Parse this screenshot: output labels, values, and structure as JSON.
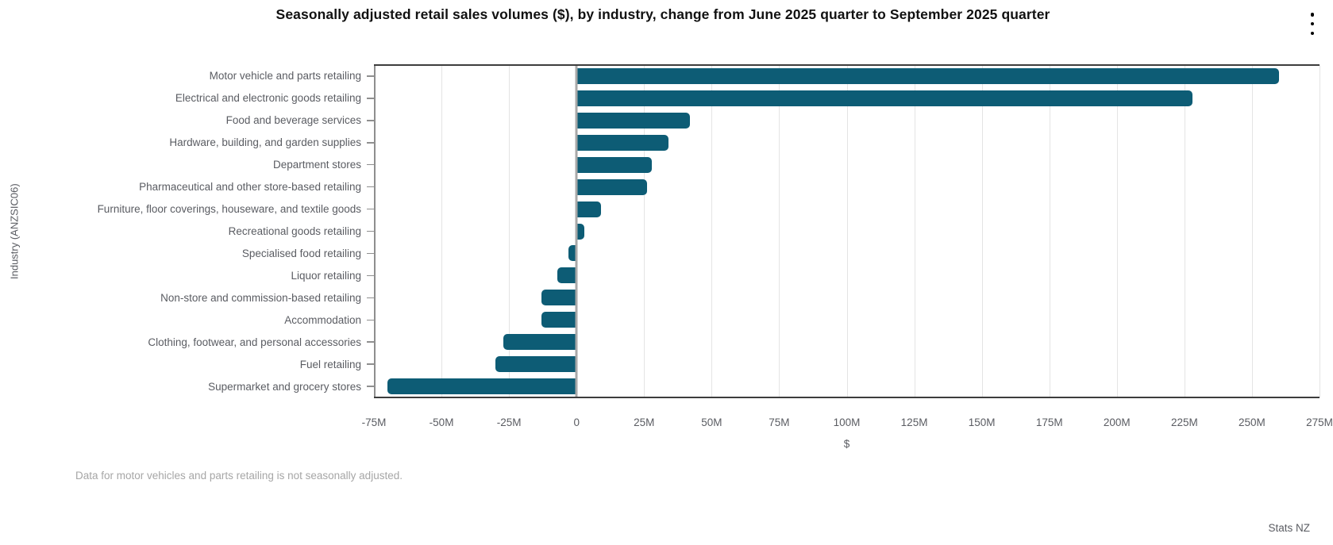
{
  "title": "Seasonally adjusted retail sales volumes ($), by industry, change from June 2025 quarter to September 2025 quarter",
  "menu": {
    "icon": "kebab-menu-icon"
  },
  "chart_data": {
    "type": "bar",
    "orientation": "horizontal",
    "title": "Seasonally adjusted retail sales volumes ($), by industry, change from June 2025 quarter to September 2025 quarter",
    "xlabel": "$",
    "ylabel": "Industry (ANZSIC06)",
    "unit": "millions of dollars",
    "xlim": [
      -75,
      275
    ],
    "xtick_step": 25,
    "xtick_labels": [
      "-75M",
      "-50M",
      "-25M",
      "0",
      "25M",
      "50M",
      "75M",
      "100M",
      "125M",
      "150M",
      "175M",
      "200M",
      "225M",
      "250M",
      "275M"
    ],
    "grid": true,
    "bar_color": "#0d5c75",
    "categories": [
      "Motor vehicle and parts retailing",
      "Electrical and electronic goods retailing",
      "Food and beverage services",
      "Hardware, building, and garden supplies",
      "Department stores",
      "Pharmaceutical and other store-based retailing",
      "Furniture, floor coverings, houseware, and textile goods",
      "Recreational goods retailing",
      "Specialised food retailing",
      "Liquor retailing",
      "Non-store and commission-based retailing",
      "Accommodation",
      "Clothing, footwear, and personal accessories",
      "Fuel retailing",
      "Supermarket and grocery stores"
    ],
    "values": [
      260,
      228,
      42,
      34,
      28,
      26,
      9,
      3,
      -3,
      -7,
      -13,
      -13,
      -27,
      -30,
      -70
    ]
  },
  "footnote": "Data for motor vehicles and parts retailing is not seasonally adjusted.",
  "attribution": "Stats NZ"
}
